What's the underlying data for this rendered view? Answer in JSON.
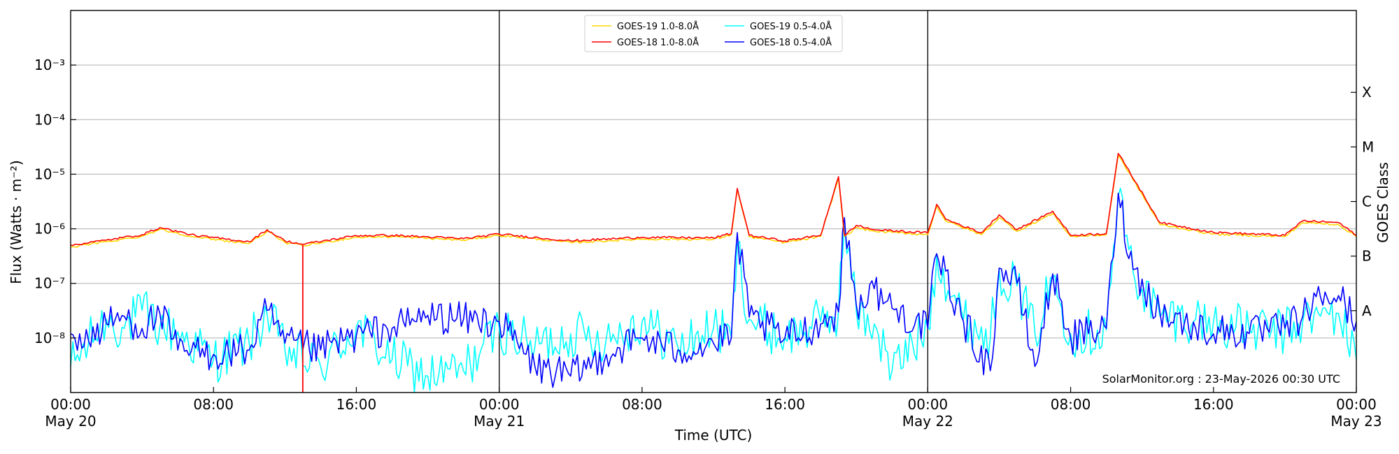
{
  "chart_data": {
    "type": "line",
    "ylabel": "Flux (Watts · m⁻²)",
    "ylabel_right": "GOES Class",
    "xlabel": "Time (UTC)",
    "y_scale": "log",
    "ylim": [
      1e-09,
      0.01
    ],
    "xlim": [
      "2026-05-20 00:00",
      "2026-05-23 00:00"
    ],
    "y_ticks": [
      {
        "value": 1e-08,
        "label": "10⁻⁸"
      },
      {
        "value": 1e-07,
        "label": "10⁻⁷"
      },
      {
        "value": 1e-06,
        "label": "10⁻⁶"
      },
      {
        "value": 1e-05,
        "label": "10⁻⁵"
      },
      {
        "value": 0.0001,
        "label": "10⁻⁴"
      },
      {
        "value": 0.001,
        "label": "10⁻³"
      }
    ],
    "goes_classes": [
      {
        "label": "A",
        "value": 3.16e-08
      },
      {
        "label": "B",
        "value": 3.16e-07
      },
      {
        "label": "C",
        "value": 3.16e-06
      },
      {
        "label": "M",
        "value": 3.16e-05
      },
      {
        "label": "X",
        "value": 0.000316
      }
    ],
    "x_ticks": [
      {
        "time": "2026-05-20 00:00",
        "line1": "00:00",
        "line2": "May 20"
      },
      {
        "time": "2026-05-20 08:00",
        "line1": "08:00",
        "line2": ""
      },
      {
        "time": "2026-05-20 16:00",
        "line1": "16:00",
        "line2": ""
      },
      {
        "time": "2026-05-21 00:00",
        "line1": "00:00",
        "line2": "May 21"
      },
      {
        "time": "2026-05-21 08:00",
        "line1": "08:00",
        "line2": ""
      },
      {
        "time": "2026-05-21 16:00",
        "line1": "16:00",
        "line2": ""
      },
      {
        "time": "2026-05-22 00:00",
        "line1": "00:00",
        "line2": "May 22"
      },
      {
        "time": "2026-05-22 08:00",
        "line1": "08:00",
        "line2": ""
      },
      {
        "time": "2026-05-22 16:00",
        "line1": "16:00",
        "line2": ""
      },
      {
        "time": "2026-05-23 00:00",
        "line1": "00:00",
        "line2": "May 23"
      }
    ],
    "day_boundaries": [
      "2026-05-21 00:00",
      "2026-05-22 00:00"
    ],
    "grid": "horizontal at decades",
    "legend_position": "top-center",
    "annotation": "SolarMonitor.org : 23-May-2026 00:30 UTC",
    "series": [
      {
        "name": "GOES-19 1.0-8.0Å",
        "color": "#ffd700",
        "x": [
          "2026-05-20 00:00",
          "2026-05-20 02:00",
          "2026-05-20 04:00",
          "2026-05-20 05:00",
          "2026-05-20 07:00",
          "2026-05-20 10:00",
          "2026-05-20 11:00",
          "2026-05-20 12:00",
          "2026-05-20 13:00",
          "2026-05-20 16:00",
          "2026-05-20 18:00",
          "2026-05-20 22:00",
          "2026-05-21 00:00",
          "2026-05-21 04:00",
          "2026-05-21 08:00",
          "2026-05-21 12:00",
          "2026-05-21 13:00",
          "2026-05-21 13:20",
          "2026-05-21 14:00",
          "2026-05-21 16:00",
          "2026-05-21 18:00",
          "2026-05-21 19:00",
          "2026-05-21 19:20",
          "2026-05-21 20:00",
          "2026-05-21 21:00",
          "2026-05-21 22:00",
          "2026-05-22 00:00",
          "2026-05-22 00:30",
          "2026-05-22 01:00",
          "2026-05-22 03:00",
          "2026-05-22 04:00",
          "2026-05-22 05:00",
          "2026-05-22 07:00",
          "2026-05-22 08:00",
          "2026-05-22 10:00",
          "2026-05-22 10:40",
          "2026-05-22 11:00",
          "2026-05-22 13:00",
          "2026-05-22 16:00",
          "2026-05-22 20:00",
          "2026-05-22 21:00",
          "2026-05-22 23:00",
          "2026-05-23 00:00"
        ],
        "y": [
          4.6e-07,
          5.8e-07,
          7.3e-07,
          9.8e-07,
          7e-07,
          5.4e-07,
          9e-07,
          5.6e-07,
          4.9e-07,
          7e-07,
          7.2e-07,
          6.2e-07,
          7.6e-07,
          5.6e-07,
          6.5e-07,
          6.4e-07,
          7.8e-07,
          5.2e-06,
          7.2e-07,
          5.6e-07,
          7.2e-07,
          8.4e-06,
          7.2e-07,
          1.05e-06,
          9e-07,
          8.6e-07,
          7.8e-07,
          2.6e-06,
          1.4e-06,
          7.8e-07,
          1.6e-06,
          9e-07,
          1.9e-06,
          7.2e-07,
          7.8e-07,
          2.2e-05,
          1.5e-05,
          1.2e-06,
          8e-07,
          7.2e-07,
          1.3e-06,
          1.2e-06,
          7.2e-07
        ]
      },
      {
        "name": "GOES-18 1.0-8.0Å",
        "color": "#ff0000",
        "x": [
          "2026-05-20 00:00",
          "2026-05-20 02:00",
          "2026-05-20 04:00",
          "2026-05-20 05:00",
          "2026-05-20 07:00",
          "2026-05-20 10:00",
          "2026-05-20 11:00",
          "2026-05-20 12:00",
          "2026-05-20 13:00",
          "2026-05-20 16:00",
          "2026-05-20 18:00",
          "2026-05-20 22:00",
          "2026-05-21 00:00",
          "2026-05-21 04:00",
          "2026-05-21 08:00",
          "2026-05-21 12:00",
          "2026-05-21 13:00",
          "2026-05-21 13:20",
          "2026-05-21 14:00",
          "2026-05-21 16:00",
          "2026-05-21 18:00",
          "2026-05-21 19:00",
          "2026-05-21 19:20",
          "2026-05-21 20:00",
          "2026-05-21 21:00",
          "2026-05-21 22:00",
          "2026-05-22 00:00",
          "2026-05-22 00:30",
          "2026-05-22 01:00",
          "2026-05-22 03:00",
          "2026-05-22 04:00",
          "2026-05-22 05:00",
          "2026-05-22 07:00",
          "2026-05-22 08:00",
          "2026-05-22 10:00",
          "2026-05-22 10:40",
          "2026-05-22 11:00",
          "2026-05-22 13:00",
          "2026-05-22 16:00",
          "2026-05-22 20:00",
          "2026-05-22 21:00",
          "2026-05-22 23:00",
          "2026-05-23 00:00"
        ],
        "y": [
          5e-07,
          6.2e-07,
          7.8e-07,
          1.05e-06,
          7.5e-07,
          5.8e-07,
          9.6e-07,
          6e-07,
          5.2e-07,
          7.5e-07,
          7.6e-07,
          6.6e-07,
          8e-07,
          6e-07,
          7e-07,
          6.8e-07,
          8.2e-07,
          5.5e-06,
          7.6e-07,
          6e-07,
          7.6e-07,
          9e-06,
          7.6e-07,
          1.15e-06,
          9.6e-07,
          9.2e-07,
          8.4e-07,
          2.8e-06,
          1.5e-06,
          8.4e-07,
          1.8e-06,
          9.6e-07,
          2.1e-06,
          7.6e-07,
          8.2e-07,
          2.4e-05,
          1.6e-05,
          1.3e-06,
          8.6e-07,
          7.6e-07,
          1.4e-06,
          1.3e-06,
          7.6e-07
        ],
        "dropout": {
          "time": "2026-05-20 13:00",
          "y_from": 5e-07,
          "y_to": 1e-09
        }
      },
      {
        "name": "GOES-19 0.5-4.0Å",
        "color": "#00ffff",
        "x": [
          "2026-05-20 00:00",
          "2026-05-20 01:00",
          "2026-05-20 02:00",
          "2026-05-20 03:00",
          "2026-05-20 04:00",
          "2026-05-20 05:00",
          "2026-05-20 06:00",
          "2026-05-20 08:00",
          "2026-05-20 10:00",
          "2026-05-20 11:00",
          "2026-05-20 12:00",
          "2026-05-20 14:00",
          "2026-05-20 16:00",
          "2026-05-20 18:00",
          "2026-05-20 20:00",
          "2026-05-20 22:00",
          "2026-05-21 00:00",
          "2026-05-21 02:00",
          "2026-05-21 04:00",
          "2026-05-21 06:00",
          "2026-05-21 08:00",
          "2026-05-21 10:00",
          "2026-05-21 12:00",
          "2026-05-21 13:00",
          "2026-05-21 13:20",
          "2026-05-21 14:00",
          "2026-05-21 16:00",
          "2026-05-21 18:00",
          "2026-05-21 19:00",
          "2026-05-21 19:20",
          "2026-05-21 20:00",
          "2026-05-21 21:00",
          "2026-05-21 22:00",
          "2026-05-22 00:00",
          "2026-05-22 00:30",
          "2026-05-22 02:00",
          "2026-05-22 03:30",
          "2026-05-22 04:00",
          "2026-05-22 05:00",
          "2026-05-22 06:00",
          "2026-05-22 07:00",
          "2026-05-22 08:00",
          "2026-05-22 10:00",
          "2026-05-22 10:40",
          "2026-05-22 11:30",
          "2026-05-22 13:00",
          "2026-05-22 15:00",
          "2026-05-22 18:00",
          "2026-05-22 20:00",
          "2026-05-22 21:00",
          "2026-05-22 22:00",
          "2026-05-22 23:00",
          "2026-05-23 00:00"
        ],
        "y": [
          3e-09,
          8e-09,
          2.2e-08,
          1.5e-08,
          3.2e-08,
          1.6e-08,
          1.3e-08,
          4e-09,
          8e-09,
          2.8e-08,
          6e-09,
          3e-09,
          1.6e-08,
          4e-09,
          2e-09,
          2.5e-09,
          1.5e-08,
          7e-09,
          1.2e-08,
          1e-08,
          2e-08,
          7e-09,
          1.5e-08,
          1e-08,
          5.2e-07,
          2.2e-08,
          1e-08,
          2e-08,
          3e-08,
          1.3e-06,
          3e-08,
          1.8e-08,
          2.5e-09,
          1.6e-08,
          3.2e-07,
          2.2e-08,
          1e-08,
          1.8e-07,
          9e-08,
          1.2e-08,
          1.3e-07,
          1.2e-08,
          1.4e-08,
          4e-06,
          1.6e-07,
          2.5e-08,
          2.2e-08,
          1.4e-08,
          1.3e-08,
          2e-08,
          2.5e-08,
          2.8e-08,
          4e-09
        ]
      },
      {
        "name": "GOES-18 0.5-4.0Å",
        "color": "#0000ff",
        "x": [
          "2026-05-20 00:00",
          "2026-05-20 01:00",
          "2026-05-20 02:00",
          "2026-05-20 03:00",
          "2026-05-20 04:00",
          "2026-05-20 05:00",
          "2026-05-20 06:00",
          "2026-05-20 08:00",
          "2026-05-20 10:00",
          "2026-05-20 11:00",
          "2026-05-20 12:00",
          "2026-05-20 14:00",
          "2026-05-20 16:00",
          "2026-05-20 18:00",
          "2026-05-20 20:00",
          "2026-05-20 22:00",
          "2026-05-21 00:00",
          "2026-05-21 02:00",
          "2026-05-21 04:00",
          "2026-05-21 06:00",
          "2026-05-21 08:00",
          "2026-05-21 10:00",
          "2026-05-21 12:00",
          "2026-05-21 13:00",
          "2026-05-21 13:20",
          "2026-05-21 14:00",
          "2026-05-21 16:00",
          "2026-05-21 18:00",
          "2026-05-21 19:00",
          "2026-05-21 19:20",
          "2026-05-21 20:00",
          "2026-05-21 21:00",
          "2026-05-21 22:00",
          "2026-05-22 00:00",
          "2026-05-22 00:30",
          "2026-05-22 02:00",
          "2026-05-22 03:30",
          "2026-05-22 04:00",
          "2026-05-22 05:00",
          "2026-05-22 06:00",
          "2026-05-22 07:00",
          "2026-05-22 08:00",
          "2026-05-22 10:00",
          "2026-05-22 10:40",
          "2026-05-22 11:30",
          "2026-05-22 13:00",
          "2026-05-22 15:00",
          "2026-05-22 18:00",
          "2026-05-22 20:00",
          "2026-05-22 21:00",
          "2026-05-22 22:00",
          "2026-05-22 23:00",
          "2026-05-23 00:00"
        ],
        "y": [
          1.2e-08,
          9e-09,
          1.8e-08,
          2.5e-08,
          1.5e-08,
          2.8e-08,
          6e-09,
          5e-09,
          6e-09,
          3.2e-08,
          8e-09,
          6e-09,
          1.1e-08,
          1.5e-08,
          2.6e-08,
          2.2e-08,
          2e-08,
          3e-09,
          2e-09,
          5e-09,
          1e-08,
          6e-09,
          8e-09,
          1e-08,
          8.5e-07,
          2.4e-08,
          1e-08,
          1.8e-08,
          3e-08,
          1.6e-06,
          4e-08,
          8e-08,
          3.5e-08,
          1.5e-08,
          3.5e-07,
          2e-08,
          2.5e-09,
          1.9e-07,
          1e-07,
          3e-09,
          1.5e-07,
          1e-08,
          1.5e-08,
          4.5e-06,
          1.8e-07,
          3e-08,
          1.5e-08,
          1.2e-08,
          1.5e-08,
          2.5e-08,
          5.5e-08,
          6e-08,
          2e-08
        ]
      }
    ]
  }
}
